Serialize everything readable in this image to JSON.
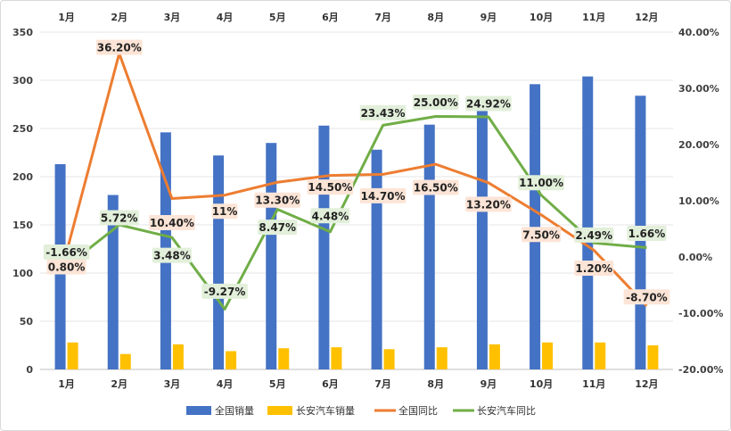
{
  "chart_data": {
    "type": "bar",
    "title": "",
    "categories": [
      "1月",
      "2月",
      "3月",
      "4月",
      "5月",
      "6月",
      "7月",
      "8月",
      "9月",
      "10月",
      "11月",
      "12月"
    ],
    "y_left": {
      "ticks": [
        0,
        50,
        100,
        150,
        200,
        250,
        300,
        350
      ],
      "ylim": [
        0,
        350
      ]
    },
    "y_right": {
      "ticks": [
        "-20.00%",
        "-10.00%",
        "0.00%",
        "10.00%",
        "20.00%",
        "30.00%",
        "40.00%"
      ],
      "ylim": [
        -20,
        40
      ]
    },
    "series": [
      {
        "name": "全国销量",
        "kind": "bar",
        "axis": "left",
        "color": "#4472C4",
        "values": [
          213,
          181,
          246,
          222,
          235,
          253,
          228,
          254,
          271,
          296,
          304,
          284
        ]
      },
      {
        "name": "长安汽车销量",
        "kind": "bar",
        "axis": "left",
        "color": "#FFC000",
        "values": [
          28,
          16,
          26,
          19,
          22,
          23,
          21,
          23,
          26,
          28,
          28,
          25
        ]
      },
      {
        "name": "全国同比",
        "kind": "line",
        "axis": "right",
        "color": "#ED7D31",
        "values": [
          0.8,
          36.2,
          10.4,
          11,
          13.3,
          14.5,
          14.7,
          16.5,
          13.2,
          7.5,
          1.2,
          -8.7
        ],
        "labels": [
          "0.80%",
          "36.20%",
          "10.40%",
          "11%",
          "13.30%",
          "14.50%",
          "14.70%",
          "16.50%",
          "13.20%",
          "7.50%",
          "1.20%",
          "-8.70%"
        ],
        "label_bg": "#FCE4D6"
      },
      {
        "name": "长安汽车同比",
        "kind": "line",
        "axis": "right",
        "color": "#70AD47",
        "values": [
          -1.66,
          5.72,
          3.48,
          -9.27,
          8.47,
          4.48,
          23.43,
          25.0,
          24.92,
          11.0,
          2.49,
          1.66
        ],
        "labels": [
          "-1.66%",
          "5.72%",
          "3.48%",
          "-9.27%",
          "8.47%",
          "4.48%",
          "23.43%",
          "25.00%",
          "24.92%",
          "11.00%",
          "2.49%",
          "1.66%"
        ],
        "label_bg": "#E2EFDA"
      }
    ],
    "legend": [
      "全国销量",
      "长安汽车销量",
      "全国同比",
      "长安汽车同比"
    ],
    "legend_position": "bottom",
    "grid": true
  }
}
